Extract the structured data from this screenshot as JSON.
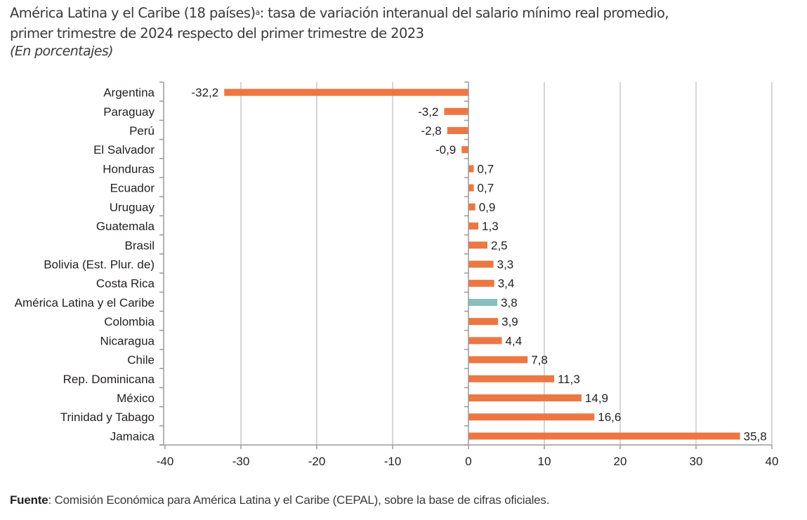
{
  "chart_data": {
    "type": "bar",
    "orientation": "horizontal",
    "title": "América Latina y el Caribe (18 países)",
    "title_superscript": "a",
    "title_rest_line1": ": tasa de variación interanual del salario mínimo real promedio,",
    "title_line2": "primer trimestre de 2024 respecto del primer trimestre de 2023",
    "subtitle": "(En porcentajes)",
    "categories": [
      "Argentina",
      "Paraguay",
      "Perú",
      "El Salvador",
      "Honduras",
      "Ecuador",
      "Uruguay",
      "Guatemala",
      "Brasil",
      "Bolivia (Est. Plur. de)",
      "Costa Rica",
      "América Latina y el Caribe",
      "Colombia",
      "Nicaragua",
      "Chile",
      "Rep. Dominicana",
      "México",
      "Trinidad y Tabago",
      "Jamaica"
    ],
    "values": [
      -32.2,
      -3.2,
      -2.8,
      -0.9,
      0.7,
      0.7,
      0.9,
      1.3,
      2.5,
      3.3,
      3.4,
      3.8,
      3.9,
      4.4,
      7.8,
      11.3,
      14.9,
      16.6,
      35.8
    ],
    "value_labels": [
      "-32,2",
      "-3,2",
      "-2,8",
      "-0,9",
      "0,7",
      "0,7",
      "0,9",
      "1,3",
      "2,5",
      "3,3",
      "3,4",
      "3,8",
      "3,9",
      "4,4",
      "7,8",
      "11,3",
      "14,9",
      "16,6",
      "35,8"
    ],
    "highlight_category": "América Latina y el Caribe",
    "xlim": [
      -40,
      40
    ],
    "xticks": [
      -40,
      -30,
      -20,
      -10,
      0,
      10,
      20,
      30,
      40
    ],
    "xtick_labels": [
      "-40",
      "-30",
      "-20",
      "-10",
      "0",
      "10",
      "20",
      "30",
      "40"
    ],
    "xlabel": "",
    "ylabel": "",
    "grid": true,
    "colors": {
      "bar": "#ed7742",
      "highlight": "#86bfbe",
      "grid": "#c8c8c8",
      "axis": "#9a9a9a"
    }
  },
  "source": {
    "label": "Fuente",
    "text": ":  Comisión Económica para América Latina y el Caribe (CEPAL), sobre la base de cifras oficiales."
  }
}
